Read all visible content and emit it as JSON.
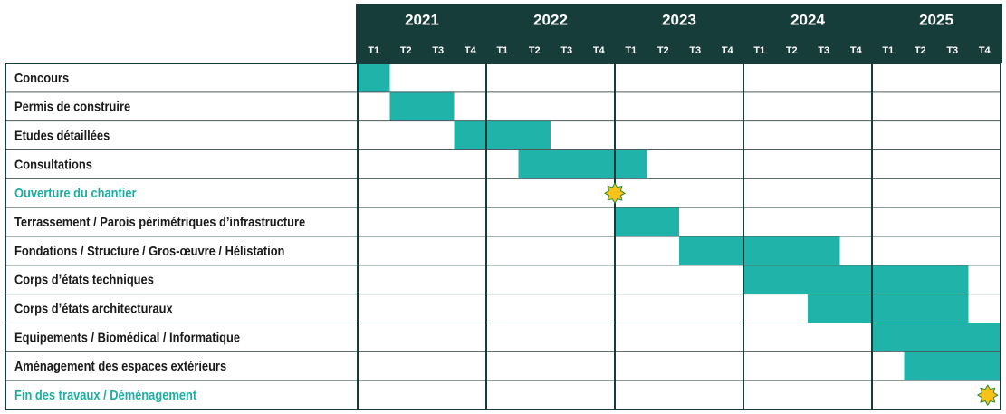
{
  "chart_data": {
    "type": "gantt",
    "years": [
      "2021",
      "2022",
      "2023",
      "2024",
      "2025"
    ],
    "quarter_labels": [
      "T1",
      "T2",
      "T3",
      "T4",
      "T1",
      "T2",
      "T3",
      "T4",
      "T1",
      "T2",
      "T3",
      "T4",
      "T1",
      "T2",
      "T3",
      "T4",
      "T1",
      "T2",
      "T3",
      "T4"
    ],
    "xlim": [
      0,
      20
    ],
    "bar_color": "#20b3aa",
    "milestone_color": "#f8c21a",
    "milestone_label_color": "#1fada3",
    "tasks": [
      {
        "name": "Concours",
        "start": 0,
        "end": 1
      },
      {
        "name": "Permis de construire",
        "start": 1,
        "end": 3
      },
      {
        "name": "Etudes détaillées",
        "start": 3,
        "end": 6
      },
      {
        "name": "Consultations",
        "start": 5,
        "end": 9
      },
      {
        "name": "Ouverture du chantier",
        "milestone": 8
      },
      {
        "name": "Terrassement / Parois périmétriques d’infrastructure",
        "start": 8,
        "end": 10
      },
      {
        "name": "Fondations / Structure / Gros-œuvre / Hélistation",
        "start": 10,
        "end": 15
      },
      {
        "name": "Corps d’états techniques",
        "start": 12,
        "end": 19
      },
      {
        "name": "Corps d’états architecturaux",
        "start": 14,
        "end": 19
      },
      {
        "name": "Equipements / Biomédical / Informatique",
        "start": 16,
        "end": 20
      },
      {
        "name": "Aménagement des espaces extérieurs",
        "start": 17,
        "end": 20
      },
      {
        "name": "Fin des travaux / Déménagement",
        "milestone": 19.6
      }
    ]
  }
}
